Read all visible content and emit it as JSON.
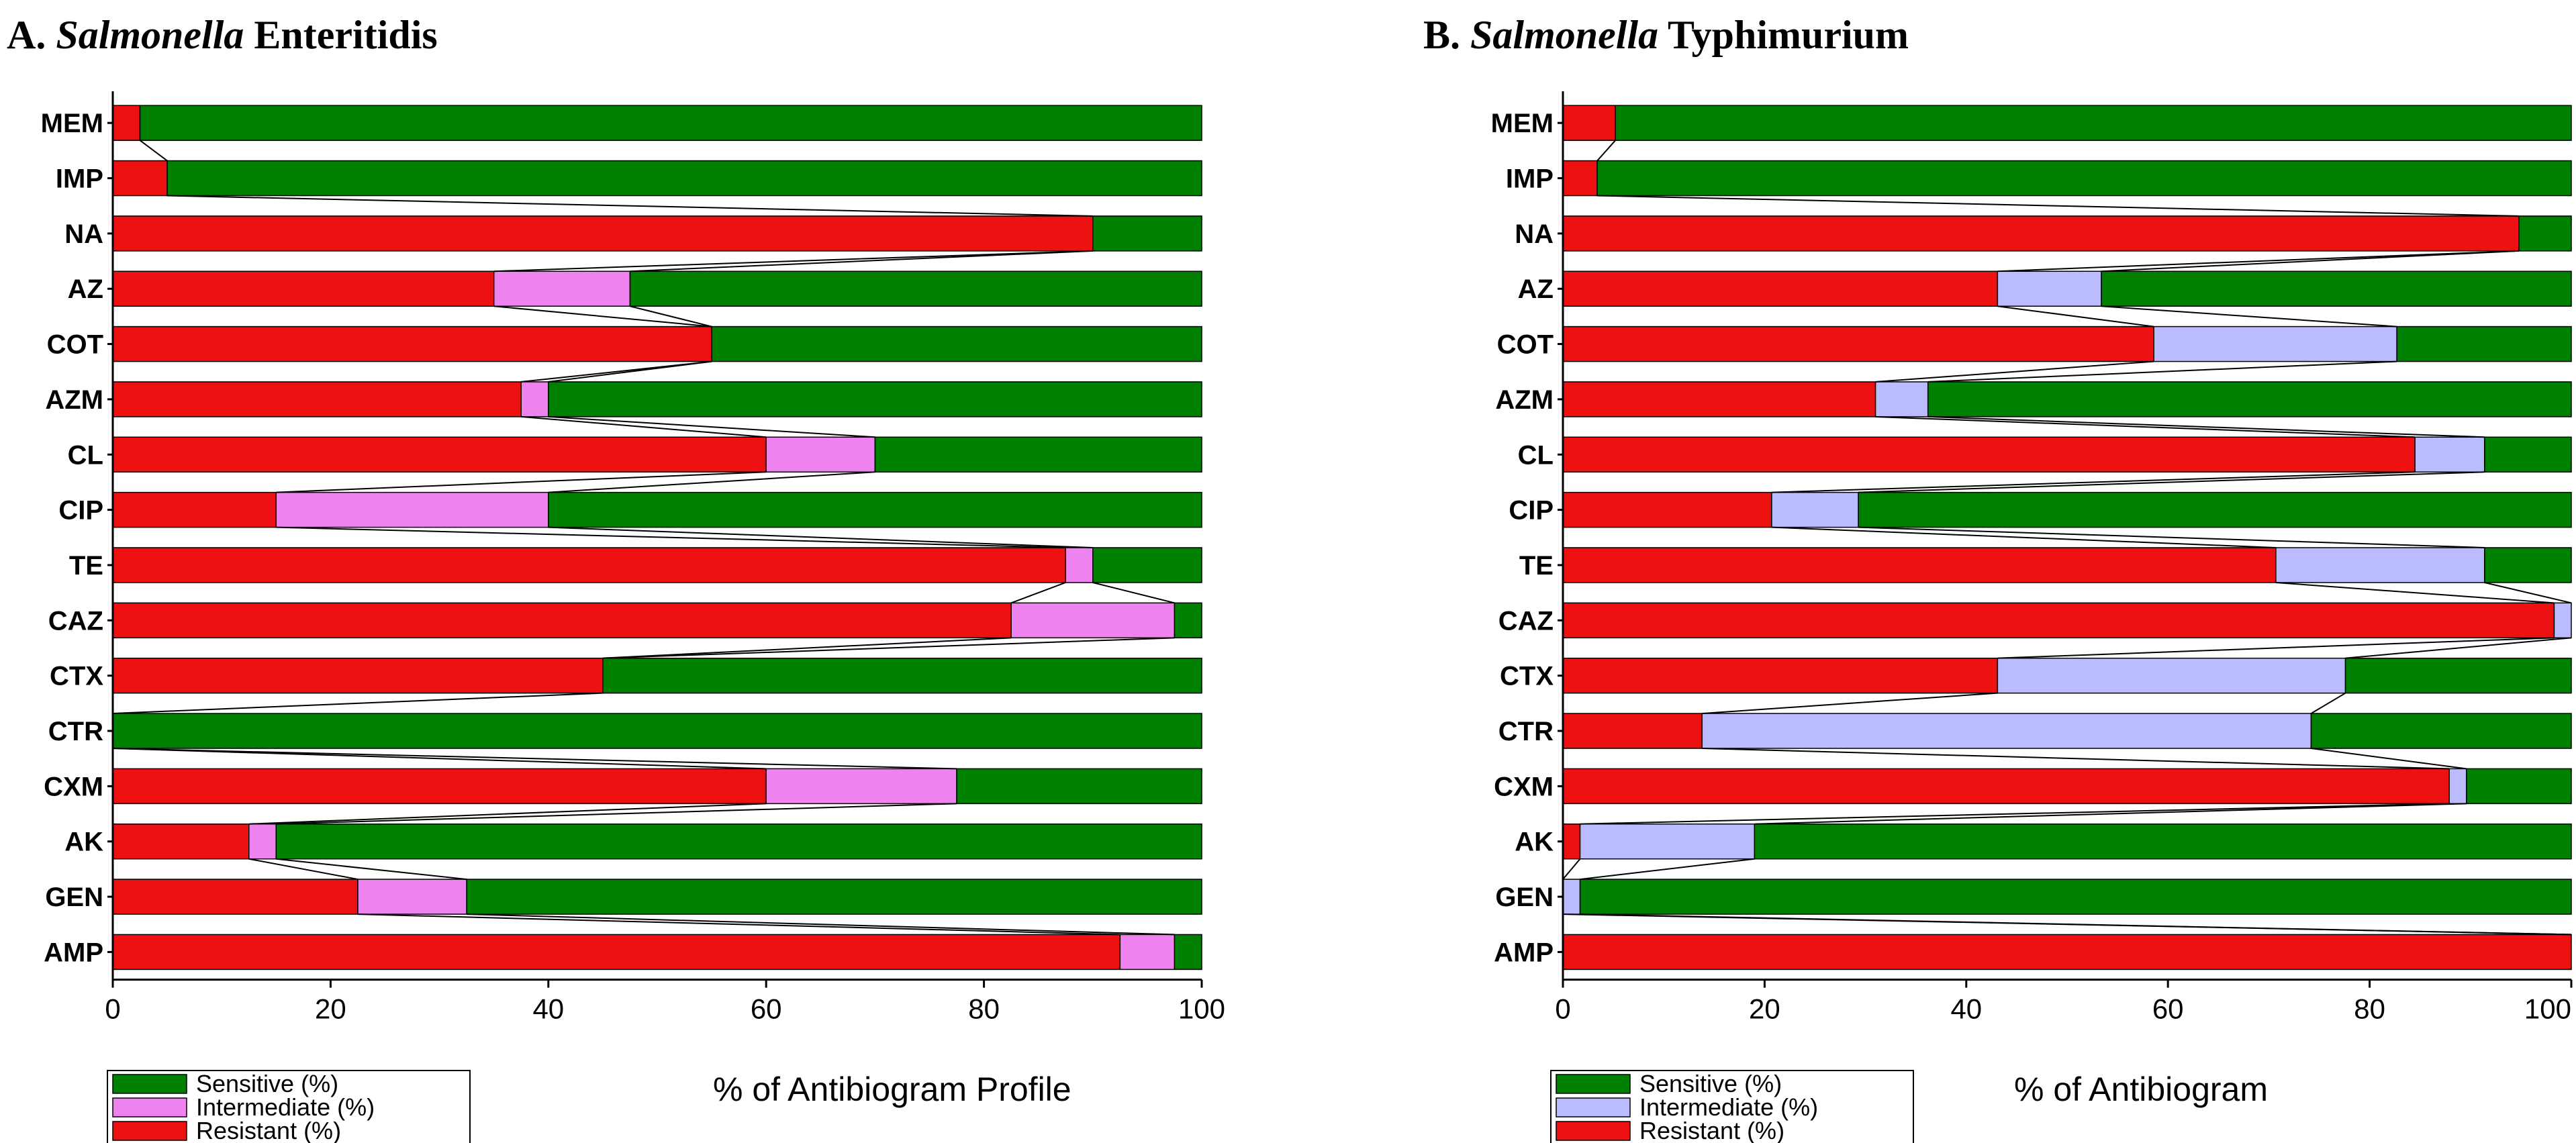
{
  "chart_data": [
    {
      "type": "bar",
      "stacked": "horizontal-100",
      "title_prefix": "A.",
      "title_genus": "Salmonella",
      "title_serovar": "Enteritidis",
      "xlabel": "% of Antibiogram Profile",
      "ylabel": "",
      "xlim": [
        0,
        100
      ],
      "xticks": [
        "0",
        "20",
        "40",
        "60",
        "80",
        "100"
      ],
      "legend": [
        "Sensitive (%)",
        "Intermediate (%)",
        "Resistant (%)"
      ],
      "legend_position": "bottom-left",
      "colors": {
        "Sensitive (%)": "#008000",
        "Intermediate (%)": "#ee82ee",
        "Resistant (%)": "#ed1111"
      },
      "categories": [
        "MEM",
        "IMP",
        "NA",
        "AZ",
        "COT",
        "AZM",
        "CL",
        "CIP",
        "TE",
        "CAZ",
        "CTX",
        "CTR",
        "CXM",
        "AK",
        "GEN",
        "AMP"
      ],
      "series": [
        {
          "name": "Resistant (%)",
          "values": [
            2.5,
            5,
            90,
            35,
            55,
            37.5,
            60,
            15,
            87.5,
            82.5,
            45,
            0,
            60,
            12.5,
            22.5,
            92.5
          ]
        },
        {
          "name": "Intermediate (%)",
          "values": [
            0,
            0,
            0,
            12.5,
            0,
            2.5,
            10,
            25,
            2.5,
            15,
            0,
            0,
            17.5,
            2.5,
            10,
            5
          ]
        },
        {
          "name": "Sensitive (%)",
          "values": [
            97.5,
            95,
            10,
            52.5,
            45,
            60,
            30,
            60,
            10,
            2.5,
            55,
            100,
            22.5,
            85,
            67.5,
            2.5
          ]
        }
      ]
    },
    {
      "type": "bar",
      "stacked": "horizontal-100",
      "title_prefix": "B.",
      "title_genus": "Salmonella",
      "title_serovar": "Typhimurium",
      "xlabel": "% of Antibiogram",
      "ylabel": "",
      "xlim": [
        0,
        100
      ],
      "xticks": [
        "0",
        "20",
        "40",
        "60",
        "80",
        "100"
      ],
      "legend": [
        "Sensitive (%)",
        "Intermediate (%)",
        "Resistant (%)"
      ],
      "legend_position": "bottom-left",
      "colors": {
        "Sensitive (%)": "#008000",
        "Intermediate (%)": "#bbbbff",
        "Resistant (%)": "#ed1111"
      },
      "categories": [
        "MEM",
        "IMP",
        "NA",
        "AZ",
        "COT",
        "AZM",
        "CL",
        "CIP",
        "TE",
        "CAZ",
        "CTX",
        "CTR",
        "CXM",
        "AK",
        "GEN",
        "AMP"
      ],
      "series": [
        {
          "name": "Resistant (%)",
          "values": [
            5.2,
            3.4,
            94.8,
            43.1,
            58.6,
            31,
            84.5,
            20.7,
            70.7,
            98.3,
            43.1,
            13.8,
            87.9,
            1.7,
            0,
            100
          ]
        },
        {
          "name": "Intermediate (%)",
          "values": [
            0,
            0,
            0,
            10.3,
            24.1,
            5.2,
            6.9,
            8.6,
            20.7,
            1.7,
            34.5,
            60.4,
            1.7,
            17.3,
            1.7,
            0
          ]
        },
        {
          "name": "Sensitive (%)",
          "values": [
            94.8,
            96.6,
            5.2,
            46.6,
            17.3,
            63.8,
            8.6,
            70.7,
            8.6,
            0,
            22.4,
            25.8,
            10.4,
            81,
            98.3,
            0
          ]
        }
      ]
    }
  ]
}
